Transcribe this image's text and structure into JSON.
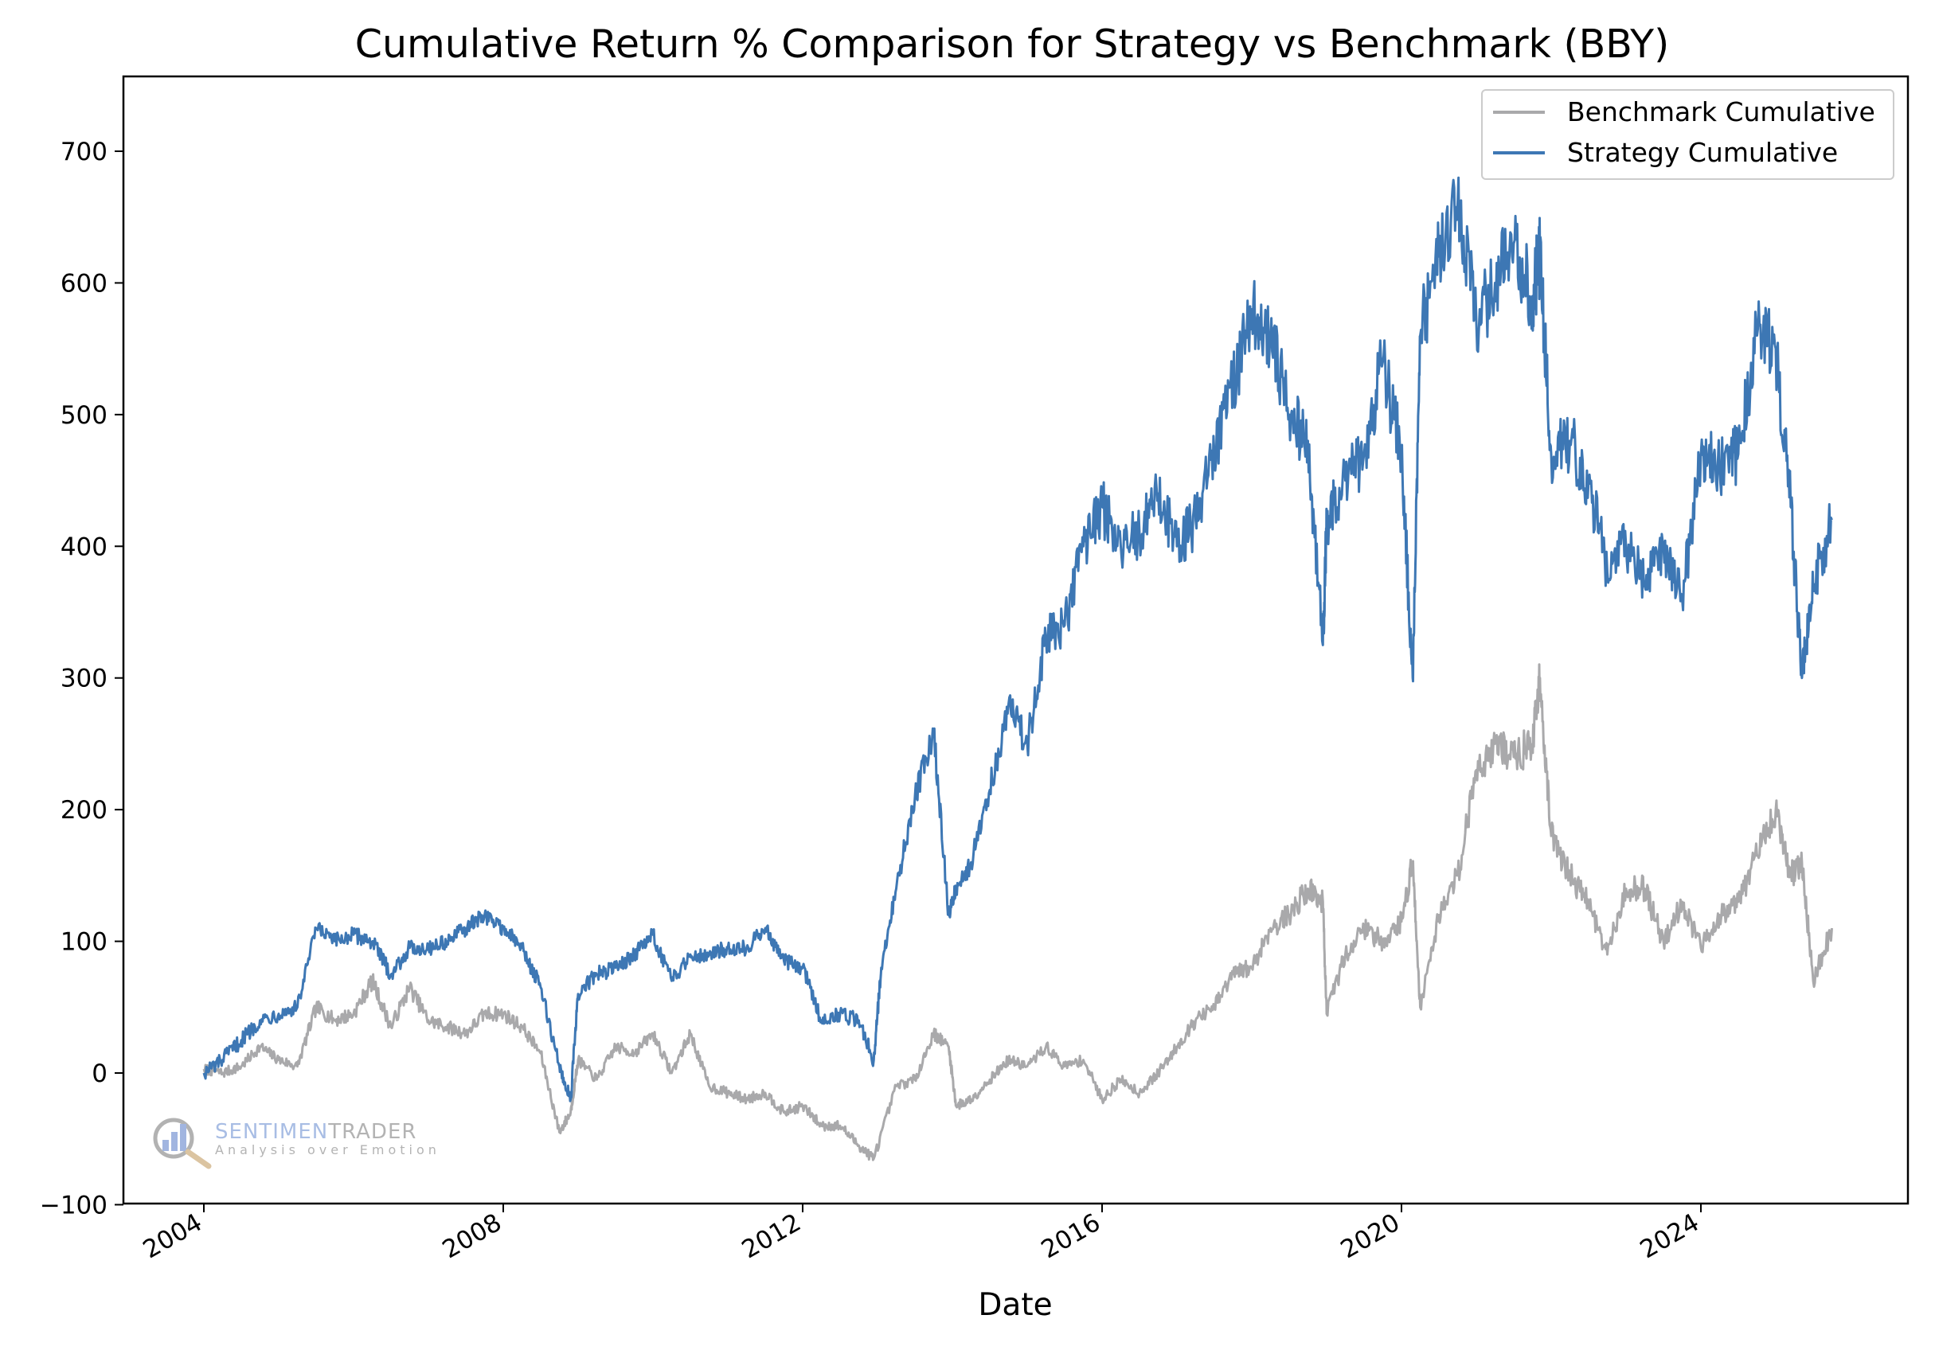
{
  "chart_data": {
    "type": "line",
    "title": "Cumulative Return % Comparison for Strategy vs Benchmark (BBY)",
    "xlabel": "Date",
    "ylabel": "",
    "xlim": [
      "2002-12-01",
      "2026-12-31"
    ],
    "ylim": [
      -100,
      750
    ],
    "x_ticks": [
      "2004",
      "2008",
      "2012",
      "2016",
      "2020",
      "2024"
    ],
    "y_ticks": [
      -100,
      0,
      100,
      200,
      300,
      400,
      500,
      600,
      700
    ],
    "grid": false,
    "legend_position": "top-right",
    "series": [
      {
        "name": "Benchmark Cumulative",
        "color": "#a9a9ab",
        "x": [
          2004.0,
          2004.25,
          2004.5,
          2004.75,
          2005.0,
          2005.25,
          2005.5,
          2005.75,
          2006.0,
          2006.25,
          2006.5,
          2006.75,
          2007.0,
          2007.25,
          2007.5,
          2007.75,
          2008.0,
          2008.25,
          2008.5,
          2008.75,
          2008.9,
          2009.0,
          2009.25,
          2009.5,
          2009.75,
          2010.0,
          2010.25,
          2010.5,
          2010.75,
          2011.0,
          2011.25,
          2011.5,
          2011.75,
          2012.0,
          2012.25,
          2012.5,
          2012.75,
          2012.95,
          2013.25,
          2013.5,
          2013.75,
          2013.95,
          2014.05,
          2014.25,
          2014.5,
          2014.75,
          2015.0,
          2015.25,
          2015.5,
          2015.75,
          2016.0,
          2016.25,
          2016.5,
          2016.75,
          2017.0,
          2017.25,
          2017.5,
          2017.75,
          2018.0,
          2018.25,
          2018.5,
          2018.75,
          2018.95,
          2019.0,
          2019.25,
          2019.5,
          2019.75,
          2020.0,
          2020.15,
          2020.25,
          2020.5,
          2020.75,
          2021.0,
          2021.25,
          2021.5,
          2021.75,
          2021.85,
          2022.0,
          2022.25,
          2022.5,
          2022.75,
          2023.0,
          2023.25,
          2023.5,
          2023.75,
          2024.0,
          2024.25,
          2024.5,
          2024.75,
          2025.0,
          2025.2,
          2025.35,
          2025.5,
          2025.75
        ],
        "values": [
          3,
          0,
          5,
          20,
          10,
          5,
          50,
          40,
          45,
          70,
          35,
          65,
          40,
          35,
          30,
          45,
          45,
          35,
          15,
          -45,
          -30,
          10,
          -5,
          20,
          15,
          30,
          0,
          30,
          -10,
          -15,
          -20,
          -15,
          -30,
          -25,
          -40,
          -40,
          -55,
          -65,
          -10,
          -5,
          30,
          20,
          -25,
          -20,
          -5,
          10,
          5,
          20,
          5,
          10,
          -20,
          -5,
          -15,
          0,
          20,
          40,
          50,
          75,
          80,
          110,
          120,
          140,
          130,
          45,
          90,
          110,
          100,
          115,
          160,
          50,
          120,
          150,
          230,
          250,
          240,
          250,
          300,
          180,
          150,
          130,
          90,
          140,
          140,
          100,
          130,
          95,
          120,
          130,
          165,
          200,
          150,
          160,
          70,
          110
        ]
      },
      {
        "name": "Strategy Cumulative",
        "color": "#3d77b4",
        "x": [
          2004.0,
          2004.25,
          2004.5,
          2004.75,
          2005.0,
          2005.25,
          2005.5,
          2005.75,
          2006.0,
          2006.25,
          2006.5,
          2006.75,
          2007.0,
          2007.25,
          2007.5,
          2007.75,
          2008.0,
          2008.25,
          2008.5,
          2008.75,
          2008.9,
          2009.0,
          2009.25,
          2009.5,
          2009.75,
          2010.0,
          2010.25,
          2010.5,
          2010.75,
          2011.0,
          2011.25,
          2011.5,
          2011.75,
          2012.0,
          2012.25,
          2012.5,
          2012.75,
          2012.95,
          2013.05,
          2013.25,
          2013.5,
          2013.75,
          2013.95,
          2014.05,
          2014.25,
          2014.5,
          2014.75,
          2015.0,
          2015.25,
          2015.5,
          2015.75,
          2016.0,
          2016.25,
          2016.5,
          2016.75,
          2017.0,
          2017.25,
          2017.5,
          2017.75,
          2018.0,
          2018.25,
          2018.5,
          2018.75,
          2018.95,
          2019.0,
          2019.25,
          2019.5,
          2019.75,
          2020.0,
          2020.15,
          2020.25,
          2020.5,
          2020.75,
          2021.0,
          2021.25,
          2021.5,
          2021.75,
          2021.85,
          2022.0,
          2022.25,
          2022.5,
          2022.75,
          2023.0,
          2023.25,
          2023.5,
          2023.75,
          2024.0,
          2024.25,
          2024.5,
          2024.75,
          2025.0,
          2025.2,
          2025.35,
          2025.5,
          2025.75
        ],
        "values": [
          0,
          10,
          25,
          40,
          45,
          50,
          110,
          100,
          105,
          100,
          75,
          95,
          95,
          100,
          110,
          120,
          110,
          95,
          65,
          5,
          -20,
          60,
          75,
          80,
          90,
          105,
          70,
          90,
          90,
          95,
          95,
          110,
          85,
          80,
          40,
          45,
          40,
          10,
          80,
          140,
          210,
          260,
          120,
          140,
          160,
          215,
          280,
          250,
          330,
          340,
          400,
          430,
          400,
          410,
          440,
          400,
          420,
          470,
          520,
          580,
          560,
          500,
          480,
          325,
          420,
          450,
          470,
          540,
          470,
          300,
          560,
          620,
          660,
          570,
          600,
          630,
          590,
          620,
          470,
          480,
          450,
          380,
          400,
          370,
          400,
          360,
          470,
          460,
          470,
          560,
          550,
          430,
          300,
          370,
          420
        ]
      }
    ]
  },
  "legend": {
    "benchmark_label": "Benchmark Cumulative",
    "strategy_label": "Strategy Cumulative"
  },
  "watermark": {
    "name_part1": "SENTIMEN",
    "name_part2": "TRADER",
    "tagline": "Analysis over Emotion"
  }
}
